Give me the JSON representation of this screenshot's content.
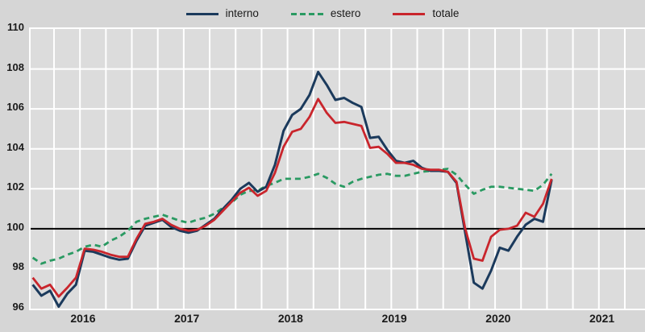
{
  "legend": {
    "items": [
      {
        "label": "interno",
        "color": "#1b3a5c",
        "style": "solid"
      },
      {
        "label": "estero",
        "color": "#2a9a62",
        "style": "dashed"
      },
      {
        "label": "totale",
        "color": "#c9252c",
        "style": "solid"
      }
    ]
  },
  "colors": {
    "background": "#d6d6d6",
    "plot_background": "#dcdcdc",
    "gridline": "#ffffff",
    "baseline": "#000000",
    "text": "#1a1a1a"
  },
  "axes": {
    "y_ticks": [
      110,
      108,
      106,
      104,
      102,
      100,
      98,
      96
    ],
    "x_ticks": [
      "2016",
      "2017",
      "2018",
      "2019",
      "2020",
      "2021"
    ],
    "baseline_value": 100
  },
  "chart_data": {
    "type": "line",
    "frequency": "monthly",
    "x_start": "2016-01",
    "x_end": "2021-01",
    "ylim": [
      96,
      110
    ],
    "grid": "on",
    "legend_position": "top-center",
    "title": "",
    "xlabel": "",
    "ylabel": "",
    "series": [
      {
        "name": "interno",
        "color": "#1b3a5c",
        "dash": "solid",
        "values": [
          97.2,
          96.65,
          96.9,
          96.1,
          96.75,
          97.2,
          98.9,
          98.85,
          98.7,
          98.55,
          98.45,
          98.5,
          99.4,
          100.15,
          100.3,
          100.45,
          100.1,
          99.9,
          99.8,
          99.9,
          100.2,
          100.5,
          101.0,
          101.45,
          102.0,
          102.3,
          101.85,
          102.1,
          103.2,
          104.9,
          105.7,
          106.0,
          106.7,
          107.85,
          107.2,
          106.45,
          106.55,
          106.3,
          106.1,
          104.55,
          104.6,
          103.95,
          103.4,
          103.3,
          103.4,
          103.05,
          102.9,
          102.9,
          102.85,
          102.3,
          99.8,
          97.3,
          97.0,
          97.9,
          99.05,
          98.9,
          99.6,
          100.2,
          100.5,
          100.35,
          102.45
        ]
      },
      {
        "name": "estero",
        "color": "#2a9a62",
        "dash": "dashed",
        "values": [
          98.55,
          98.25,
          98.4,
          98.5,
          98.7,
          98.85,
          99.1,
          99.2,
          99.1,
          99.4,
          99.6,
          99.9,
          100.35,
          100.5,
          100.6,
          100.7,
          100.55,
          100.4,
          100.3,
          100.45,
          100.55,
          100.75,
          101.05,
          101.3,
          101.7,
          101.9,
          101.9,
          102.15,
          102.3,
          102.5,
          102.5,
          102.5,
          102.6,
          102.75,
          102.55,
          102.25,
          102.1,
          102.35,
          102.5,
          102.6,
          102.7,
          102.75,
          102.65,
          102.65,
          102.75,
          102.85,
          102.9,
          102.95,
          103.0,
          102.7,
          102.2,
          101.75,
          101.95,
          102.1,
          102.1,
          102.05,
          102.0,
          101.95,
          101.9,
          102.2,
          102.75
        ]
      },
      {
        "name": "totale",
        "color": "#c9252c",
        "dash": "solid",
        "values": [
          97.55,
          97.0,
          97.2,
          96.6,
          97.05,
          97.55,
          99.0,
          98.95,
          98.85,
          98.7,
          98.6,
          98.6,
          99.5,
          100.25,
          100.35,
          100.5,
          100.2,
          100.0,
          99.9,
          99.95,
          100.15,
          100.45,
          100.9,
          101.35,
          101.8,
          102.05,
          101.65,
          101.9,
          102.8,
          104.1,
          104.85,
          105.0,
          105.6,
          106.5,
          105.8,
          105.3,
          105.35,
          105.25,
          105.15,
          104.05,
          104.1,
          103.75,
          103.3,
          103.3,
          103.2,
          103.0,
          102.95,
          102.95,
          102.85,
          102.35,
          100.0,
          98.5,
          98.4,
          99.6,
          99.95,
          100.0,
          100.15,
          100.8,
          100.6,
          101.25,
          102.5
        ]
      }
    ]
  }
}
